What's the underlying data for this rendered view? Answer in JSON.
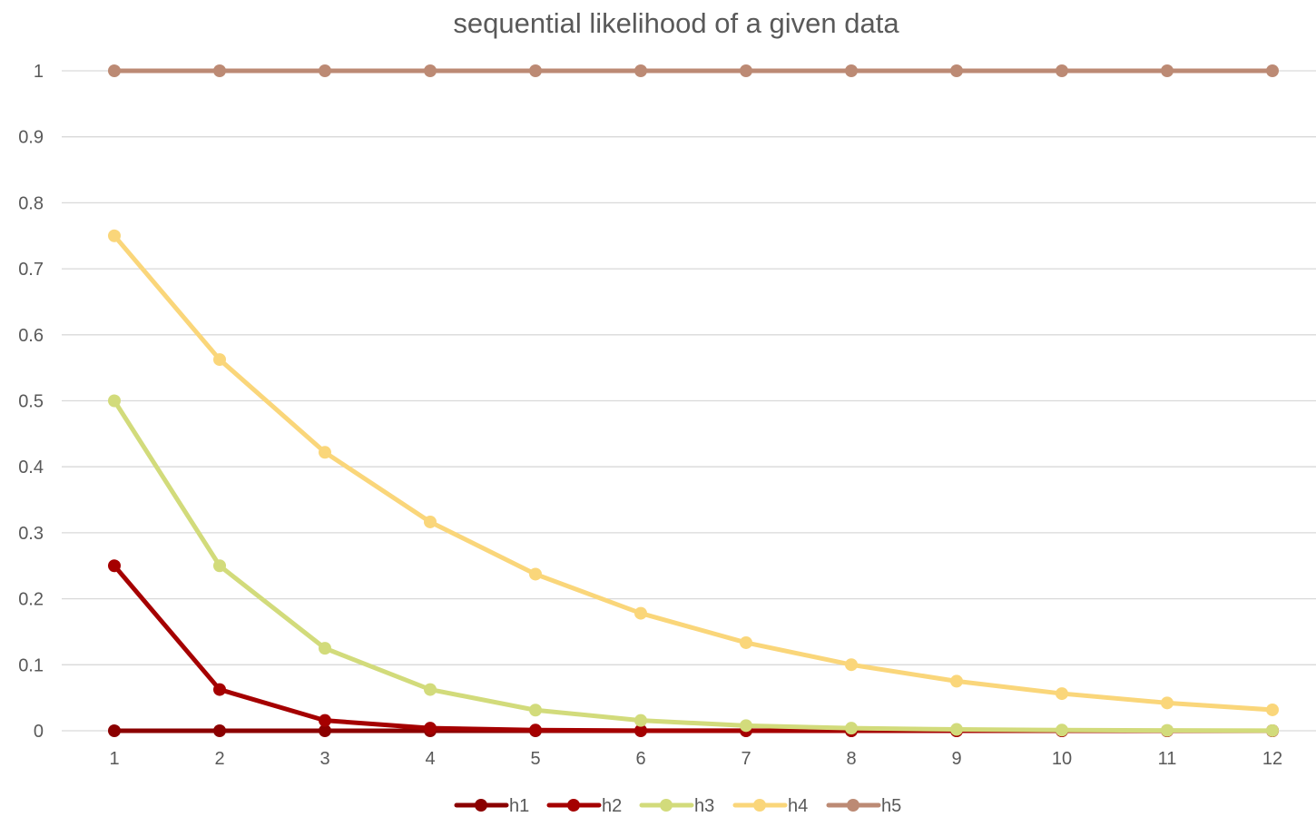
{
  "chart_data": {
    "type": "line",
    "title": "sequential likelihood of a given data",
    "xlabel": "",
    "ylabel": "",
    "categories": [
      "1",
      "2",
      "3",
      "4",
      "5",
      "6",
      "7",
      "8",
      "9",
      "10",
      "11",
      "12"
    ],
    "ylim": [
      0,
      1
    ],
    "yticks": [
      "0",
      "0.1",
      "0.2",
      "0.3",
      "0.4",
      "0.5",
      "0.6",
      "0.7",
      "0.8",
      "0.9",
      "1"
    ],
    "grid": true,
    "legend_position": "bottom",
    "series": [
      {
        "name": "h1",
        "color": "#8B0000",
        "values": [
          0,
          0,
          0,
          0,
          0,
          0,
          0,
          0,
          0,
          0,
          0,
          0
        ]
      },
      {
        "name": "h2",
        "color": "#A50000",
        "values": [
          0.25,
          0.0625,
          0.0156,
          0.0039,
          0.001,
          0.0002,
          0.0001,
          0,
          0,
          0,
          0,
          0
        ]
      },
      {
        "name": "h3",
        "color": "#D2DB7B",
        "values": [
          0.5,
          0.25,
          0.125,
          0.0625,
          0.0313,
          0.0156,
          0.0078,
          0.0039,
          0.002,
          0.001,
          0.0005,
          0.0002
        ]
      },
      {
        "name": "h4",
        "color": "#FAD67A",
        "values": [
          0.75,
          0.5625,
          0.4219,
          0.3164,
          0.2373,
          0.178,
          0.1335,
          0.1001,
          0.0751,
          0.0563,
          0.0422,
          0.0317
        ]
      },
      {
        "name": "h5",
        "color": "#BC8A74",
        "values": [
          1,
          1,
          1,
          1,
          1,
          1,
          1,
          1,
          1,
          1,
          1,
          1
        ]
      }
    ]
  }
}
